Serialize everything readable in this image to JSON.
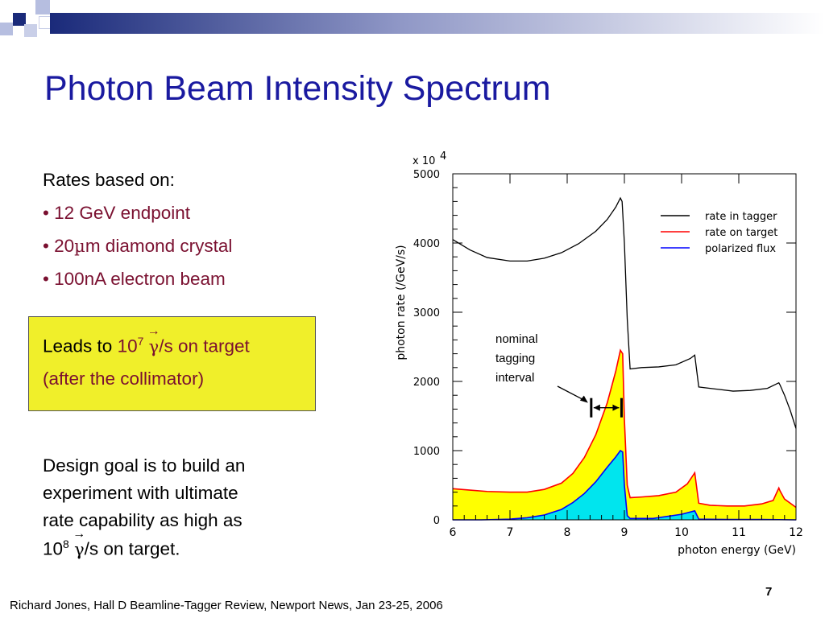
{
  "slide": {
    "title": "Photon Beam Intensity Spectrum",
    "rates_heading": "Rates based on:",
    "bullets": [
      "• 12 GeV endpoint",
      "• 20",
      "m diamond crystal",
      "• 100nA electron beam"
    ],
    "mu_symbol": "µ",
    "box_line1_prefix": "Leads to ",
    "box_line1_value": "10",
    "box_line1_exp": "7",
    "gamma_symbol": "γ",
    "box_line1_suffix": "/s on target",
    "box_line2": "(after the collimator)",
    "design_lines": [
      "Design goal is to build an",
      "experiment with ultimate",
      "rate capability as high as"
    ],
    "design_last_value": "10",
    "design_last_exp": "8",
    "design_last_suffix": "/s on target.",
    "footer": "Richard Jones, Hall D Beamline-Tagger Review, Newport News, Jan 23-25, 2006",
    "page_number": "7"
  },
  "colors": {
    "title": "#1a1aa0",
    "bullet_text": "#7a1030",
    "box_fill": "#f0ef2a",
    "rate_in_tagger": "#000000",
    "rate_on_target": "#ff0000",
    "polarized_flux": "#0000ff",
    "fill_on_target": "#ffff00",
    "fill_polarized": "#00e5ee"
  },
  "chart_data": {
    "type": "line",
    "xlabel": "photon energy (GeV)",
    "ylabel": "photon rate (/GeV/s)",
    "y_multiplier": "x 10",
    "y_multiplier_exp": "4",
    "xlim": [
      6,
      12
    ],
    "ylim": [
      0,
      5000
    ],
    "x_ticks": [
      6,
      7,
      8,
      9,
      10,
      11,
      12
    ],
    "y_ticks": [
      0,
      1000,
      2000,
      3000,
      4000,
      5000
    ],
    "legend_position": "top-right",
    "series": [
      {
        "name": "rate in tagger",
        "x": [
          6.0,
          6.3,
          6.6,
          7.0,
          7.3,
          7.6,
          7.9,
          8.2,
          8.5,
          8.7,
          8.85,
          8.93,
          8.96,
          9.0,
          9.05,
          9.1,
          9.3,
          9.6,
          9.9,
          10.15,
          10.23,
          10.3,
          10.6,
          10.9,
          11.2,
          11.5,
          11.7,
          11.72,
          11.8,
          11.9,
          12.0
        ],
        "y": [
          4050,
          3900,
          3790,
          3740,
          3740,
          3780,
          3860,
          3990,
          4170,
          4340,
          4520,
          4650,
          4600,
          4000,
          2900,
          2180,
          2200,
          2210,
          2240,
          2330,
          2380,
          1920,
          1890,
          1860,
          1870,
          1900,
          1980,
          1950,
          1800,
          1580,
          1320
        ]
      },
      {
        "name": "rate on target",
        "x": [
          6.0,
          6.3,
          6.6,
          7.0,
          7.3,
          7.6,
          7.9,
          8.1,
          8.3,
          8.5,
          8.7,
          8.85,
          8.93,
          8.97,
          9.0,
          9.05,
          9.1,
          9.3,
          9.6,
          9.9,
          10.1,
          10.23,
          10.3,
          10.5,
          10.8,
          11.1,
          11.4,
          11.6,
          11.7,
          11.72,
          11.8,
          12.0
        ],
        "y": [
          450,
          430,
          410,
          400,
          400,
          440,
          530,
          670,
          900,
          1230,
          1690,
          2150,
          2450,
          2400,
          1450,
          500,
          320,
          330,
          350,
          400,
          520,
          680,
          240,
          210,
          200,
          200,
          230,
          280,
          460,
          420,
          300,
          180
        ]
      },
      {
        "name": "polarized flux",
        "x": [
          6.0,
          6.5,
          7.0,
          7.3,
          7.6,
          7.9,
          8.1,
          8.3,
          8.5,
          8.7,
          8.85,
          8.93,
          8.97,
          9.0,
          9.05,
          9.1,
          9.5,
          10.0,
          10.23,
          10.3,
          10.8,
          11.4,
          11.7,
          12.0
        ],
        "y": [
          0,
          0,
          10,
          30,
          70,
          150,
          250,
          380,
          550,
          760,
          910,
          1000,
          980,
          500,
          60,
          20,
          20,
          80,
          130,
          10,
          5,
          5,
          3,
          0
        ]
      }
    ]
  },
  "annotation": {
    "lines": [
      "nominal",
      "tagging",
      "interval"
    ],
    "interval_x": [
      8.42,
      8.95
    ],
    "interval_y": 1620
  }
}
